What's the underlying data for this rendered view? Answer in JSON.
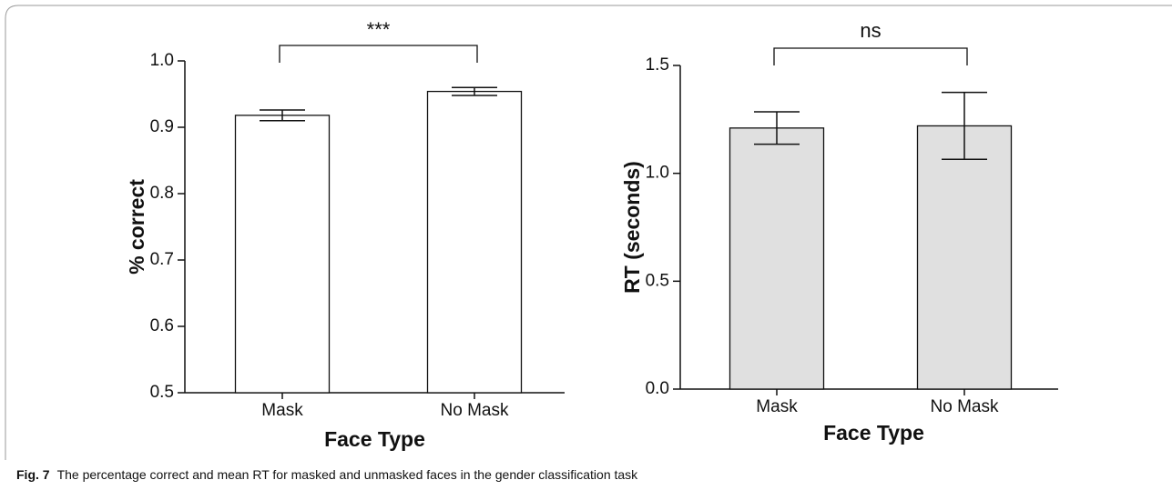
{
  "chart_data": [
    {
      "type": "bar",
      "categories": [
        "Mask",
        "No Mask"
      ],
      "values": [
        0.918,
        0.954
      ],
      "errors": [
        0.008,
        0.006
      ],
      "color": "#ffffff",
      "ylim": [
        0.5,
        1.0
      ],
      "yticks": [
        0.5,
        0.6,
        0.7,
        0.8,
        0.9,
        {
          "value": 1,
          "label": "1.0"
        }
      ],
      "xlabel": "Face Type",
      "ylabel": "% correct",
      "annotation": "***"
    },
    {
      "type": "bar",
      "categories": [
        "Mask",
        "No Mask"
      ],
      "values": [
        1.21,
        1.22
      ],
      "errors": [
        0.075,
        0.155
      ],
      "color": "#e0e0e0",
      "ylim": [
        0,
        1.5
      ],
      "yticks": [
        {
          "value": 0,
          "label": "0.0"
        },
        0.5,
        {
          "value": 1,
          "label": "1.0"
        },
        1.5
      ],
      "xlabel": "Face Type",
      "ylabel": "RT (seconds)",
      "annotation": "ns"
    }
  ],
  "caption": {
    "label": "Fig. 7",
    "text": "The percentage correct and mean RT for masked and unmasked faces in the gender classification task"
  }
}
